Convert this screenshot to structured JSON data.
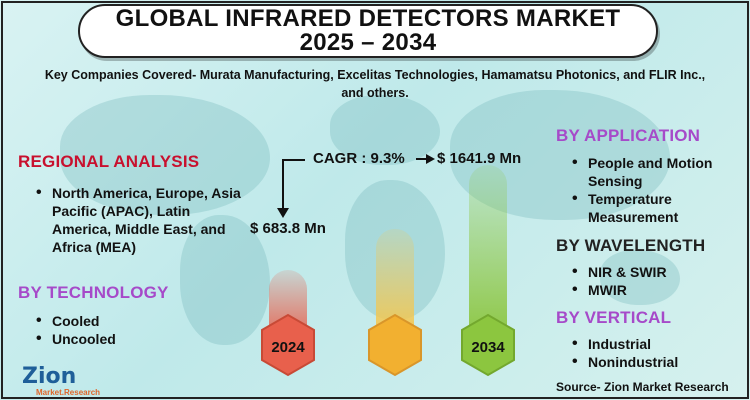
{
  "title": {
    "line1": "GLOBAL INFRARED DETECTORS MARKET",
    "line2": "2025 – 2034"
  },
  "companies_text": "Key Companies Covered- Murata Manufacturing, Excelitas Technologies, Hamamatsu Photonics, and FLIR Inc., and others.",
  "regional": {
    "heading": "REGIONAL ANALYSIS",
    "items": [
      "North America, Europe, Asia Pacific (APAC), Latin America, Middle East, and Africa (MEA)"
    ]
  },
  "technology": {
    "heading": "BY TECHNOLOGY",
    "items": [
      "Cooled",
      "Uncooled"
    ]
  },
  "application": {
    "heading": "BY APPLICATION",
    "items": [
      "People and Motion Sensing",
      "Temperature Measurement"
    ]
  },
  "wavelength": {
    "heading": "BY WAVELENGTH",
    "items": [
      "NIR & SWIR",
      "MWIR"
    ]
  },
  "vertical": {
    "heading": "BY VERTICAL",
    "items": [
      "Industrial",
      "Nonindustrial"
    ]
  },
  "chart_data": {
    "type": "bar",
    "title": "Global Infrared Detectors Market",
    "categories": [
      "2024",
      "",
      "2034"
    ],
    "values": [
      683.8,
      null,
      1641.9
    ],
    "unit": "USD Mn",
    "start_label": "$ 683.8 Mn",
    "end_label": "$ 1641.9 Mn",
    "cagr_label": "CAGR : 9.3%"
  },
  "colors": {
    "red_heading": "#c8102e",
    "purple_heading": "#a64ac9",
    "dark_heading": "#222222",
    "bar_2024": "#e8604c",
    "bar_mid": "#f2b030",
    "bar_2034": "#8cc63f"
  },
  "logo": {
    "main": "Zion",
    "sub": "Market.Research"
  },
  "source": "Source- Zion Market Research"
}
